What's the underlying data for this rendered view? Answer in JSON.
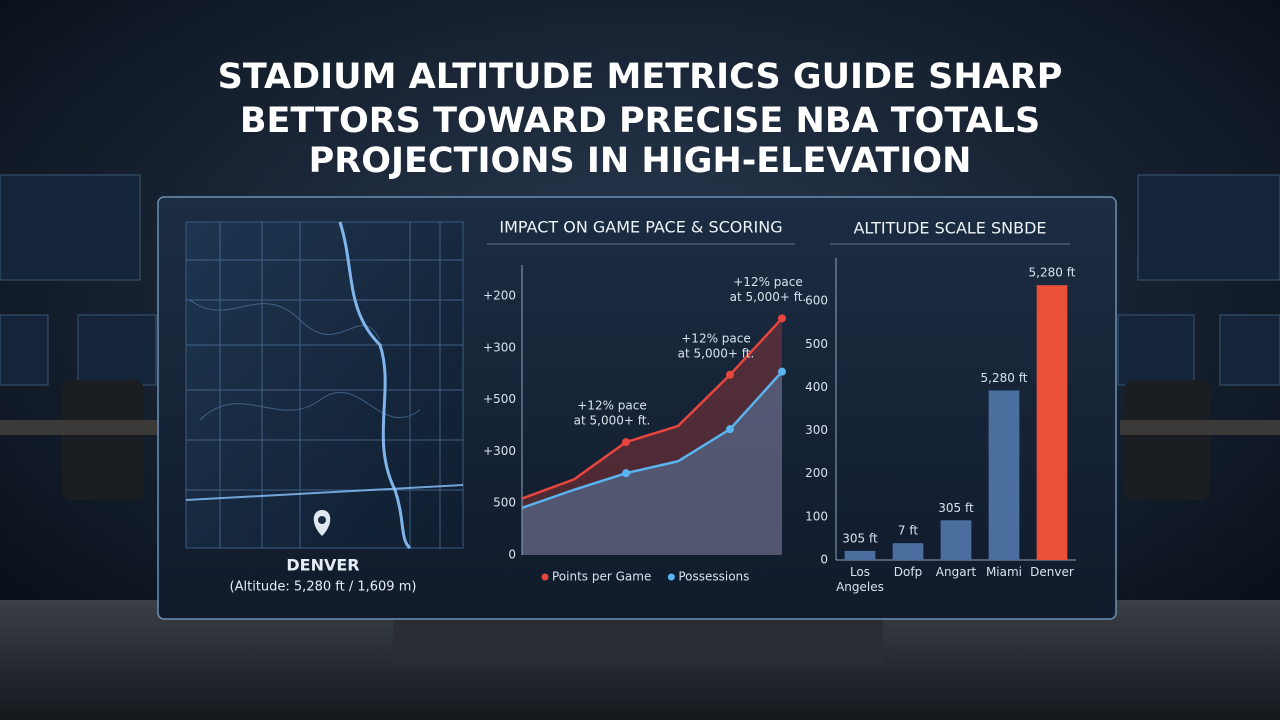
{
  "headline": [
    "STADIUM ALTITUDE METRICS GUIDE SHARP",
    "BETTORS TOWARD PRECISE NBA TOTALS",
    "PROJECTIONS IN HIGH-ELEVATION"
  ],
  "map": {
    "label": "DENVER",
    "caption": "(Altitude: 5,280 ft / 1,609 m)"
  },
  "chart_data": [
    {
      "type": "line",
      "title": "IMPACT ON GAME PACE & SCORING",
      "categories": [
        null,
        null,
        null,
        null,
        null,
        null
      ],
      "series": [
        {
          "name": "Points per Game",
          "color": "#e8453c",
          "values": [
            109,
            146,
            218,
            249,
            348,
            457
          ],
          "markers": [
            2,
            4,
            5
          ]
        },
        {
          "name": "Possessions",
          "color": "#5ab4f0",
          "values": [
            91,
            126,
            158,
            181,
            243,
            354
          ],
          "markers": [
            2,
            4,
            5
          ]
        }
      ],
      "annotations": [
        [
          "+12% pace",
          "at 5,000+ ft."
        ],
        [
          "+12% pace",
          "at 5,000+ ft."
        ],
        [
          "+12% pace",
          "at 5,000+ ft."
        ]
      ],
      "ylim": [
        0,
        560
      ],
      "yticks": [
        0,
        {
          "value": 100,
          "label": "500"
        },
        {
          "value": 200,
          "label": "+300"
        },
        {
          "value": 300,
          "label": "+500"
        },
        {
          "value": 400,
          "label": "+300"
        },
        {
          "value": 500,
          "label": "+200"
        }
      ],
      "legend": "bottom"
    },
    {
      "type": "bar",
      "title": "ALTITUDE SCALE SNBDE",
      "categories": [
        "Los Angeles",
        "Dofp",
        "Angart",
        "Miami",
        "Denver"
      ],
      "values": [
        21,
        39,
        92,
        393,
        637
      ],
      "colors": [
        "#4a6f9f",
        "#4a6f9f",
        "#4a6f9f",
        "#4a6f9f",
        "#ea4f37"
      ],
      "annotations": [
        "305 ft",
        "7 ft",
        "305 ft",
        "5,280 ft",
        "5,280 ft"
      ],
      "ylim": [
        0,
        700
      ],
      "yticks": [
        0,
        100,
        200,
        300,
        400,
        500,
        600
      ]
    }
  ]
}
